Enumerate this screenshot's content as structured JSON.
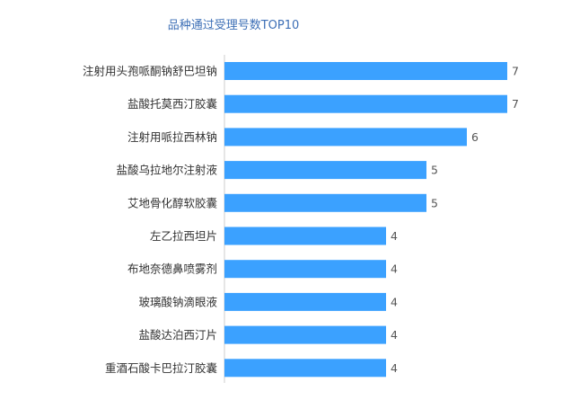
{
  "chart_data": {
    "type": "bar",
    "orientation": "horizontal",
    "title": "品种通过受理号数TOP10",
    "categories": [
      "注射用头孢哌酮钠舒巴坦钠",
      "盐酸托莫西汀胶囊",
      "注射用哌拉西林钠",
      "盐酸乌拉地尔注射液",
      "艾地骨化醇软胶囊",
      "左乙拉西坦片",
      "布地奈德鼻喷雾剂",
      "玻璃酸钠滴眼液",
      "盐酸达泊西汀片",
      "重酒石酸卡巴拉汀胶囊"
    ],
    "values": [
      7,
      7,
      6,
      5,
      5,
      4,
      4,
      4,
      4,
      4
    ],
    "xlim": [
      0,
      7
    ],
    "grid": false,
    "bar_color": "#3ba1ff",
    "xlabel": "",
    "ylabel": ""
  }
}
